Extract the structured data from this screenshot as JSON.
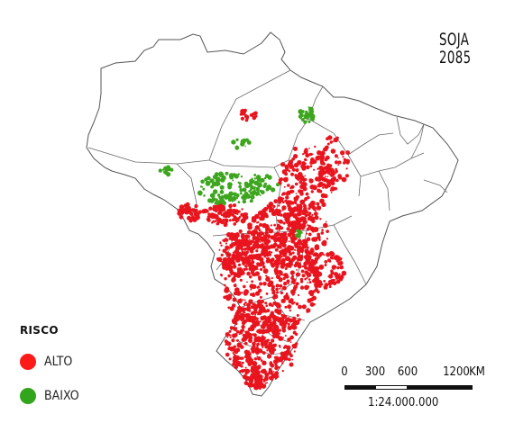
{
  "title": {
    "line1": "SOJA",
    "line2": "2085"
  },
  "legend": {
    "title": "RISCO",
    "items": [
      {
        "label": "ALTO",
        "color": "#ff1a1a"
      },
      {
        "label": "BAIXO",
        "color": "#33a51c"
      }
    ]
  },
  "scale": {
    "labels": [
      "0",
      "300",
      "600",
      "1200",
      "KM"
    ],
    "ratio": "1:24.000.000"
  },
  "colors": {
    "high": "#e8141e",
    "low": "#3da51e",
    "border": "#555555"
  }
}
